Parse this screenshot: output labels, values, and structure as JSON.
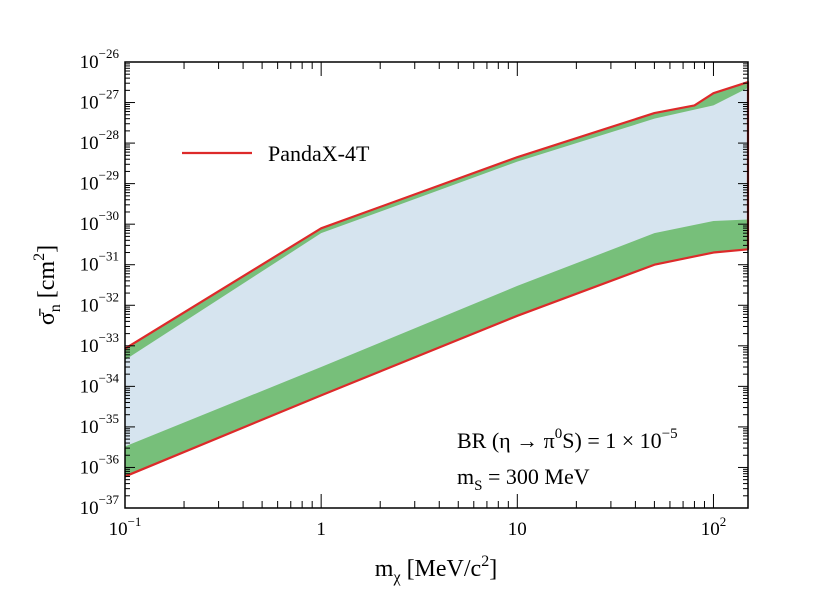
{
  "chart_data": {
    "type": "area",
    "x_scale": "log",
    "y_scale": "log",
    "xlim": [
      0.1,
      150
    ],
    "ylim": [
      1e-37,
      1e-26
    ],
    "xlabel": {
      "main": "m",
      "sub": "χ",
      "unit": " [MeV/c",
      "unit_sup": "2",
      "unit_end": "]"
    },
    "ylabel": {
      "main": "σ̄",
      "sub": "n",
      "unit": " [cm",
      "unit_sup": "2",
      "unit_end": "]"
    },
    "x_ticks": [
      {
        "value": 0.1,
        "base": "10",
        "exp": "−1"
      },
      {
        "value": 1,
        "base": "1",
        "exp": ""
      },
      {
        "value": 10,
        "base": "10",
        "exp": ""
      },
      {
        "value": 100,
        "base": "10",
        "exp": "2"
      }
    ],
    "y_ticks": [
      {
        "value": 1e-26,
        "base": "10",
        "exp": "−26"
      },
      {
        "value": 1e-27,
        "base": "10",
        "exp": "−27"
      },
      {
        "value": 1e-28,
        "base": "10",
        "exp": "−28"
      },
      {
        "value": 1e-29,
        "base": "10",
        "exp": "−29"
      },
      {
        "value": 1e-30,
        "base": "10",
        "exp": "−30"
      },
      {
        "value": 1e-31,
        "base": "10",
        "exp": "−31"
      },
      {
        "value": 1e-32,
        "base": "10",
        "exp": "−32"
      },
      {
        "value": 1e-33,
        "base": "10",
        "exp": "−33"
      },
      {
        "value": 1e-34,
        "base": "10",
        "exp": "−34"
      },
      {
        "value": 1e-35,
        "base": "10",
        "exp": "−35"
      },
      {
        "value": 1e-36,
        "base": "10",
        "exp": "−36"
      },
      {
        "value": 1e-37,
        "base": "10",
        "exp": "−37"
      }
    ],
    "series": [
      {
        "name": "green band (outer)",
        "color": "#77bf7a",
        "x": [
          0.1,
          1,
          10,
          50,
          80,
          100,
          150
        ],
        "upper": [
          8.5e-34,
          7.9e-31,
          4.5e-29,
          5.5e-28,
          8.5e-28,
          1.7e-27,
          3.2e-27
        ],
        "lower": [
          6e-37,
          6e-35,
          5.5e-33,
          1e-31,
          1.6e-31,
          2e-31,
          2.4e-31
        ]
      },
      {
        "name": "light blue band (inner)",
        "color": "#d6e4ef",
        "x": [
          0.1,
          1,
          10,
          50,
          100,
          150
        ],
        "upper": [
          4.5e-34,
          6e-31,
          3.5e-29,
          4e-28,
          8.5e-28,
          2.3e-27
        ],
        "lower": [
          3.3e-36,
          3e-34,
          3e-32,
          6e-31,
          1.2e-30,
          1.3e-30
        ]
      },
      {
        "name": "PandaX-4T",
        "color": "#dd2a2a",
        "x": [
          0.1,
          1,
          10,
          50,
          80,
          100,
          150
        ],
        "upper": [
          8.5e-34,
          7.9e-31,
          4.5e-29,
          5.5e-28,
          8.5e-28,
          1.7e-27,
          3.2e-27
        ],
        "lower": [
          6e-37,
          6e-35,
          5.5e-33,
          1e-31,
          1.6e-31,
          2e-31,
          2.4e-31
        ]
      }
    ],
    "legend": {
      "label": "PandaX-4T",
      "color": "#dd2a2a",
      "placement": "top-left"
    },
    "annotations": [
      {
        "id": "br",
        "parts": [
          {
            "t": "BR (η → π",
            "style": "normal"
          },
          {
            "t": "0",
            "style": "sup"
          },
          {
            "t": "S) = 1 × 10",
            "style": "normal"
          },
          {
            "t": "−5",
            "style": "sup"
          }
        ]
      },
      {
        "id": "ms",
        "parts": [
          {
            "t": "m",
            "style": "normal"
          },
          {
            "t": "S",
            "style": "sub"
          },
          {
            "t": " = 300 MeV",
            "style": "normal"
          }
        ]
      }
    ]
  }
}
